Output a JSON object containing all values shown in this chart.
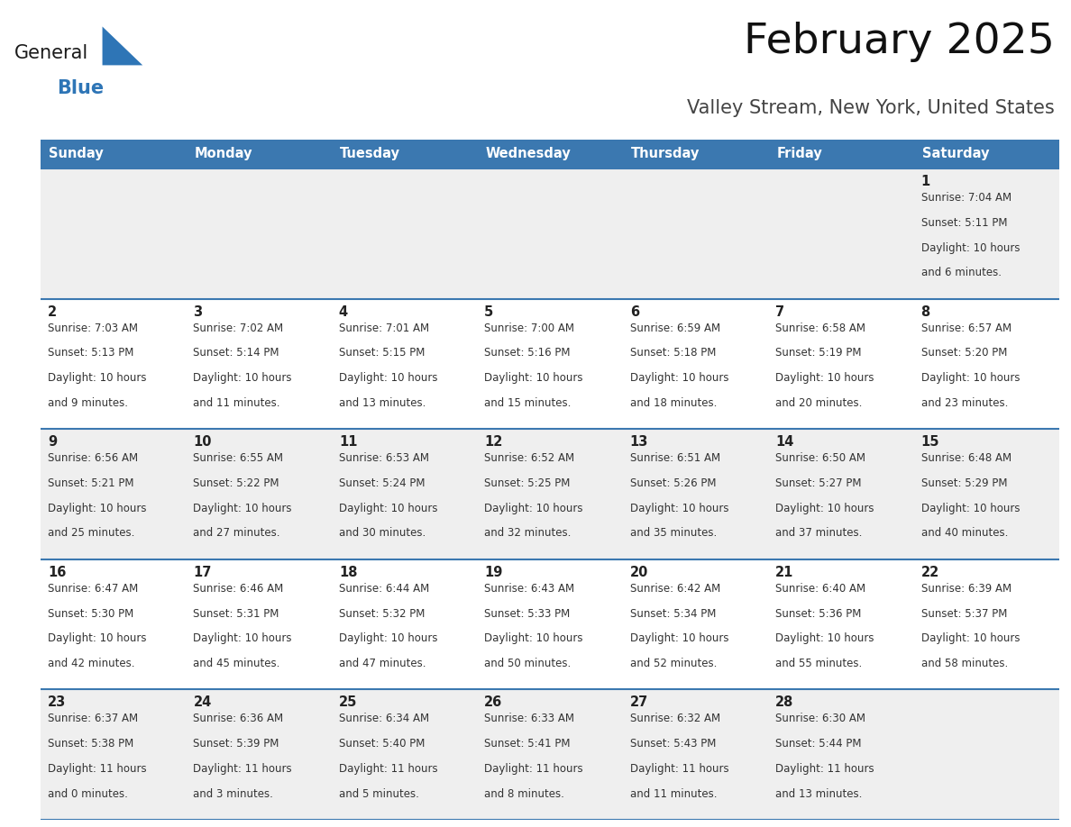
{
  "title": "February 2025",
  "subtitle": "Valley Stream, New York, United States",
  "days_of_week": [
    "Sunday",
    "Monday",
    "Tuesday",
    "Wednesday",
    "Thursday",
    "Friday",
    "Saturday"
  ],
  "header_bg": "#3B78B0",
  "header_text": "#FFFFFF",
  "row_bg_odd": "#EFEFEF",
  "row_bg_even": "#FFFFFF",
  "border_color": "#3B78B0",
  "text_color": "#333333",
  "day_num_color": "#222222",
  "calendar_data": [
    [
      null,
      null,
      null,
      null,
      null,
      null,
      {
        "day": 1,
        "sunrise": "7:04 AM",
        "sunset": "5:11 PM",
        "daylight_line1": "Daylight: 10 hours",
        "daylight_line2": "and 6 minutes."
      }
    ],
    [
      {
        "day": 2,
        "sunrise": "7:03 AM",
        "sunset": "5:13 PM",
        "daylight_line1": "Daylight: 10 hours",
        "daylight_line2": "and 9 minutes."
      },
      {
        "day": 3,
        "sunrise": "7:02 AM",
        "sunset": "5:14 PM",
        "daylight_line1": "Daylight: 10 hours",
        "daylight_line2": "and 11 minutes."
      },
      {
        "day": 4,
        "sunrise": "7:01 AM",
        "sunset": "5:15 PM",
        "daylight_line1": "Daylight: 10 hours",
        "daylight_line2": "and 13 minutes."
      },
      {
        "day": 5,
        "sunrise": "7:00 AM",
        "sunset": "5:16 PM",
        "daylight_line1": "Daylight: 10 hours",
        "daylight_line2": "and 15 minutes."
      },
      {
        "day": 6,
        "sunrise": "6:59 AM",
        "sunset": "5:18 PM",
        "daylight_line1": "Daylight: 10 hours",
        "daylight_line2": "and 18 minutes."
      },
      {
        "day": 7,
        "sunrise": "6:58 AM",
        "sunset": "5:19 PM",
        "daylight_line1": "Daylight: 10 hours",
        "daylight_line2": "and 20 minutes."
      },
      {
        "day": 8,
        "sunrise": "6:57 AM",
        "sunset": "5:20 PM",
        "daylight_line1": "Daylight: 10 hours",
        "daylight_line2": "and 23 minutes."
      }
    ],
    [
      {
        "day": 9,
        "sunrise": "6:56 AM",
        "sunset": "5:21 PM",
        "daylight_line1": "Daylight: 10 hours",
        "daylight_line2": "and 25 minutes."
      },
      {
        "day": 10,
        "sunrise": "6:55 AM",
        "sunset": "5:22 PM",
        "daylight_line1": "Daylight: 10 hours",
        "daylight_line2": "and 27 minutes."
      },
      {
        "day": 11,
        "sunrise": "6:53 AM",
        "sunset": "5:24 PM",
        "daylight_line1": "Daylight: 10 hours",
        "daylight_line2": "and 30 minutes."
      },
      {
        "day": 12,
        "sunrise": "6:52 AM",
        "sunset": "5:25 PM",
        "daylight_line1": "Daylight: 10 hours",
        "daylight_line2": "and 32 minutes."
      },
      {
        "day": 13,
        "sunrise": "6:51 AM",
        "sunset": "5:26 PM",
        "daylight_line1": "Daylight: 10 hours",
        "daylight_line2": "and 35 minutes."
      },
      {
        "day": 14,
        "sunrise": "6:50 AM",
        "sunset": "5:27 PM",
        "daylight_line1": "Daylight: 10 hours",
        "daylight_line2": "and 37 minutes."
      },
      {
        "day": 15,
        "sunrise": "6:48 AM",
        "sunset": "5:29 PM",
        "daylight_line1": "Daylight: 10 hours",
        "daylight_line2": "and 40 minutes."
      }
    ],
    [
      {
        "day": 16,
        "sunrise": "6:47 AM",
        "sunset": "5:30 PM",
        "daylight_line1": "Daylight: 10 hours",
        "daylight_line2": "and 42 minutes."
      },
      {
        "day": 17,
        "sunrise": "6:46 AM",
        "sunset": "5:31 PM",
        "daylight_line1": "Daylight: 10 hours",
        "daylight_line2": "and 45 minutes."
      },
      {
        "day": 18,
        "sunrise": "6:44 AM",
        "sunset": "5:32 PM",
        "daylight_line1": "Daylight: 10 hours",
        "daylight_line2": "and 47 minutes."
      },
      {
        "day": 19,
        "sunrise": "6:43 AM",
        "sunset": "5:33 PM",
        "daylight_line1": "Daylight: 10 hours",
        "daylight_line2": "and 50 minutes."
      },
      {
        "day": 20,
        "sunrise": "6:42 AM",
        "sunset": "5:34 PM",
        "daylight_line1": "Daylight: 10 hours",
        "daylight_line2": "and 52 minutes."
      },
      {
        "day": 21,
        "sunrise": "6:40 AM",
        "sunset": "5:36 PM",
        "daylight_line1": "Daylight: 10 hours",
        "daylight_line2": "and 55 minutes."
      },
      {
        "day": 22,
        "sunrise": "6:39 AM",
        "sunset": "5:37 PM",
        "daylight_line1": "Daylight: 10 hours",
        "daylight_line2": "and 58 minutes."
      }
    ],
    [
      {
        "day": 23,
        "sunrise": "6:37 AM",
        "sunset": "5:38 PM",
        "daylight_line1": "Daylight: 11 hours",
        "daylight_line2": "and 0 minutes."
      },
      {
        "day": 24,
        "sunrise": "6:36 AM",
        "sunset": "5:39 PM",
        "daylight_line1": "Daylight: 11 hours",
        "daylight_line2": "and 3 minutes."
      },
      {
        "day": 25,
        "sunrise": "6:34 AM",
        "sunset": "5:40 PM",
        "daylight_line1": "Daylight: 11 hours",
        "daylight_line2": "and 5 minutes."
      },
      {
        "day": 26,
        "sunrise": "6:33 AM",
        "sunset": "5:41 PM",
        "daylight_line1": "Daylight: 11 hours",
        "daylight_line2": "and 8 minutes."
      },
      {
        "day": 27,
        "sunrise": "6:32 AM",
        "sunset": "5:43 PM",
        "daylight_line1": "Daylight: 11 hours",
        "daylight_line2": "and 11 minutes."
      },
      {
        "day": 28,
        "sunrise": "6:30 AM",
        "sunset": "5:44 PM",
        "daylight_line1": "Daylight: 11 hours",
        "daylight_line2": "and 13 minutes."
      },
      null
    ]
  ],
  "logo_text_general": "General",
  "logo_text_blue": "Blue",
  "logo_color_general": "#1a1a1a",
  "logo_color_blue": "#2E75B6",
  "logo_triangle_color": "#2E75B6"
}
